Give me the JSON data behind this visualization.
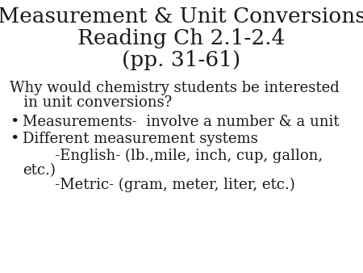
{
  "background_color": "#ffffff",
  "title_line1": "Measurement & Unit Conversions",
  "title_line2": "Reading Ch 2.1-2.4",
  "title_line3": "(pp. 31-61)",
  "title_fontsize": 19,
  "body_fontsize": 13,
  "text_color": "#1a1a1a",
  "question_line1": "Why would chemistry students be interested",
  "question_line2": "   in unit conversions?",
  "bullet1": "Measurements-  involve a number & a unit",
  "bullet2": "Different measurement systems",
  "sub1_line1": "       -English- (lb.,mile, inch, cup, gallon,",
  "sub1_line2": "etc.)",
  "sub2": "       -Metric- (gram, meter, liter, etc.)"
}
